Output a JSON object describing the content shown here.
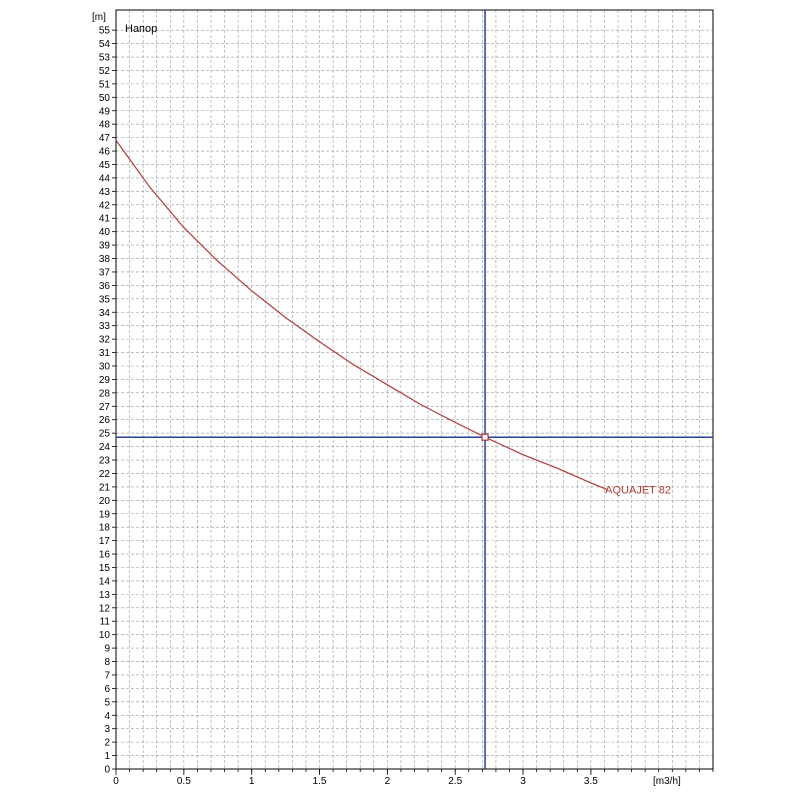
{
  "chart_data": {
    "type": "line",
    "title": "Напор",
    "xunit": "[m3/h]",
    "yunit": "[m]",
    "xlim": [
      0,
      4.4
    ],
    "ylim": [
      0,
      56.5
    ],
    "x_ticks": [
      0,
      0.5,
      1,
      1.5,
      2,
      2.5,
      3,
      3.5
    ],
    "x_tick_labels": [
      "0",
      "0.5",
      "1",
      "1.5",
      "2",
      "2.5",
      "3",
      "3.5"
    ],
    "y_ticks": [
      0,
      1,
      2,
      3,
      4,
      5,
      6,
      7,
      8,
      9,
      10,
      11,
      12,
      13,
      14,
      15,
      16,
      17,
      18,
      19,
      20,
      21,
      22,
      23,
      24,
      25,
      26,
      27,
      28,
      29,
      30,
      31,
      32,
      33,
      34,
      35,
      36,
      37,
      38,
      39,
      40,
      41,
      42,
      43,
      44,
      45,
      46,
      47,
      48,
      49,
      50,
      51,
      52,
      53,
      54,
      55
    ],
    "x_minor_step": 0.1,
    "grid": true,
    "series": [
      {
        "name": "AQUAJET 82",
        "color": "#b03a3a",
        "x": [
          0,
          0.25,
          0.5,
          0.75,
          1.0,
          1.25,
          1.5,
          1.75,
          2.0,
          2.25,
          2.5,
          2.72,
          3.0,
          3.25,
          3.5,
          3.62
        ],
        "y": [
          46.8,
          43.3,
          40.3,
          37.8,
          35.6,
          33.6,
          31.8,
          30.1,
          28.6,
          27.1,
          25.8,
          24.7,
          23.4,
          22.4,
          21.3,
          20.8
        ]
      }
    ],
    "operating_point": {
      "x": 2.72,
      "y": 24.7
    },
    "crosshair_color": "#2a3f9e"
  }
}
